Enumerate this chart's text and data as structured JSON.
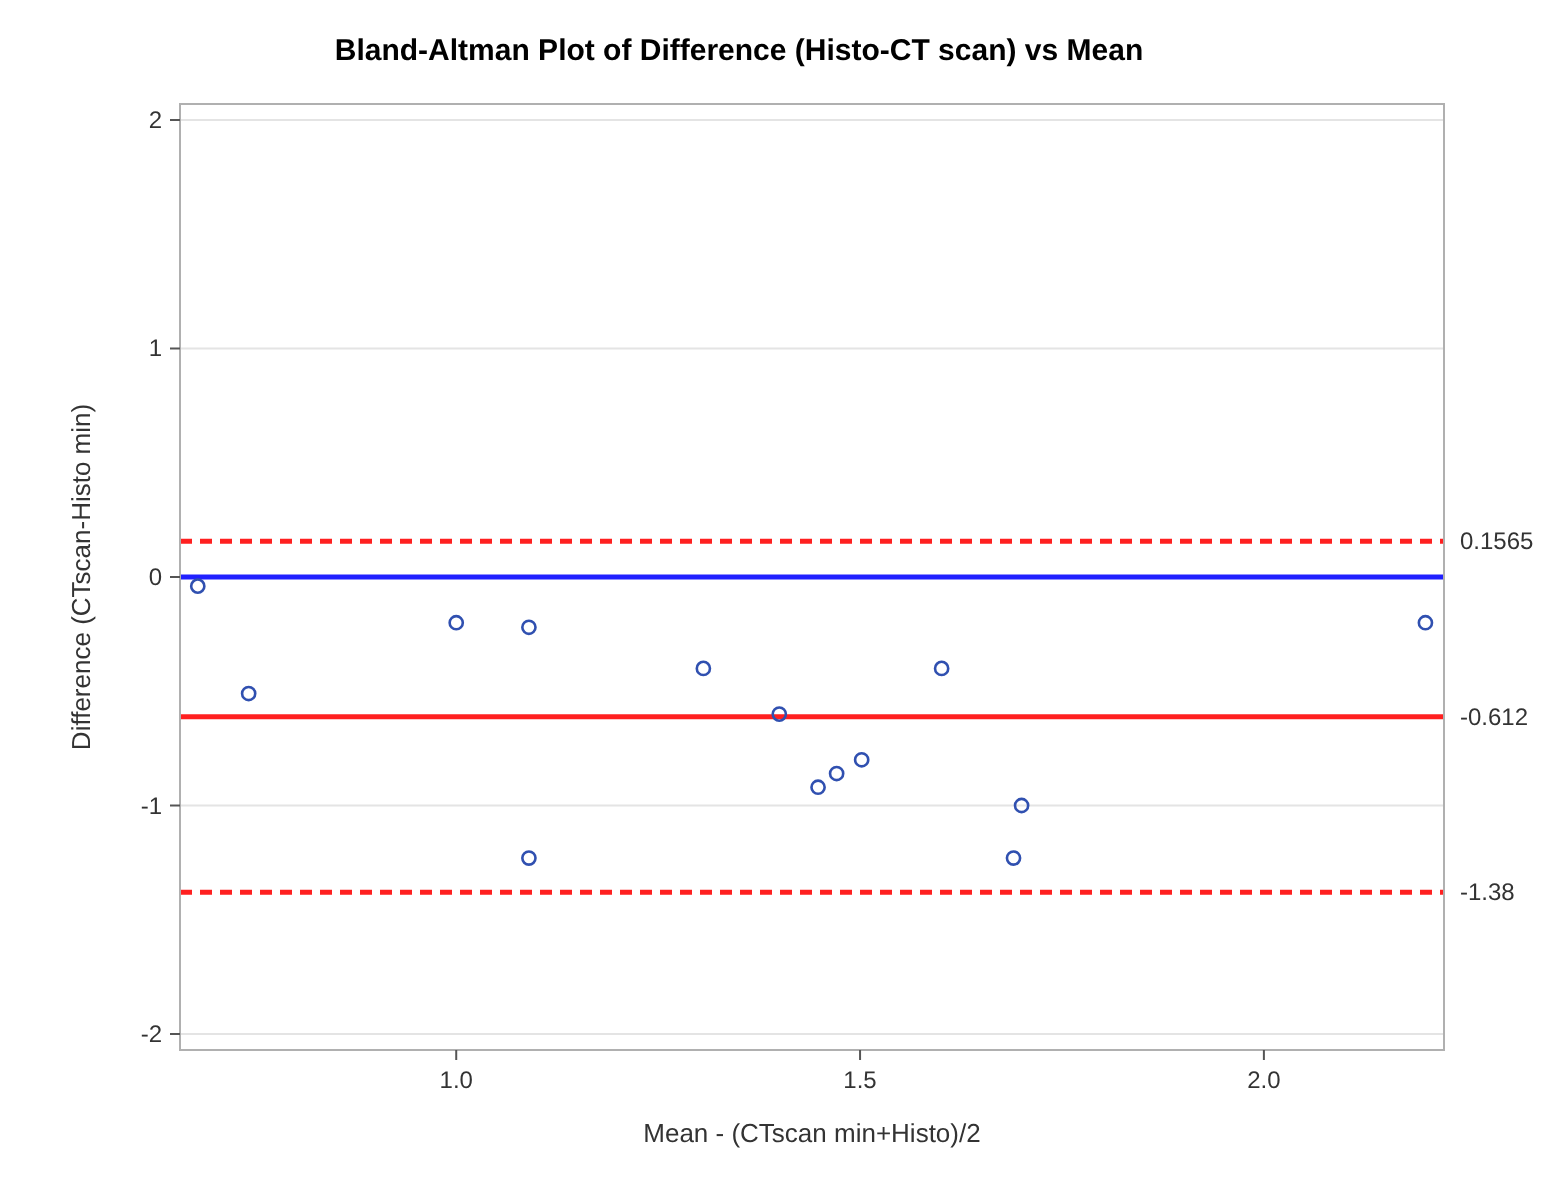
{
  "chart_data": {
    "type": "scatter",
    "title": "Bland-Altman Plot of Difference (Histo-CT scan) vs Mean",
    "xlabel": "Mean - (CTscan min+Histo)/2",
    "ylabel": "Difference (CTscan-Histo min)",
    "x": [
      0.68,
      0.743,
      1.0,
      1.09,
      1.09,
      1.306,
      1.4,
      1.448,
      1.471,
      1.502,
      1.601,
      1.69,
      1.7,
      2.2
    ],
    "series": [
      {
        "color": "#3050b0",
        "values": [
          -0.04,
          -0.51,
          -0.2,
          -0.22,
          -1.23,
          -0.4,
          -0.6,
          -0.92,
          -0.86,
          -0.8,
          -0.4,
          -1.23,
          -1.0,
          -0.2
        ]
      }
    ],
    "marker": "circle",
    "xlim": [
      0.658,
      2.223
    ],
    "ylim": [
      -2.07,
      2.07
    ],
    "xticks": [
      {
        "value": 1,
        "label": "1.0"
      },
      {
        "value": 1.5,
        "label": "1.5"
      },
      {
        "value": 2,
        "label": "2.0"
      }
    ],
    "yticks": [
      -2,
      -1,
      0,
      1,
      2
    ],
    "grid": "y",
    "ref_lines": [
      {
        "axis": "y",
        "value": 0,
        "label": null,
        "color": "#2020ff",
        "line_style": "solid"
      },
      {
        "axis": "y",
        "value": 0.1565,
        "label": "0.1565",
        "color": "#ff2020",
        "line_style": "dashed"
      },
      {
        "axis": "y",
        "value": -0.612,
        "label": "-0.612",
        "color": "#ff2020",
        "line_style": "solid"
      },
      {
        "axis": "y",
        "value": -1.38,
        "label": "-1.38",
        "color": "#ff2020",
        "line_style": "dashed"
      }
    ]
  }
}
